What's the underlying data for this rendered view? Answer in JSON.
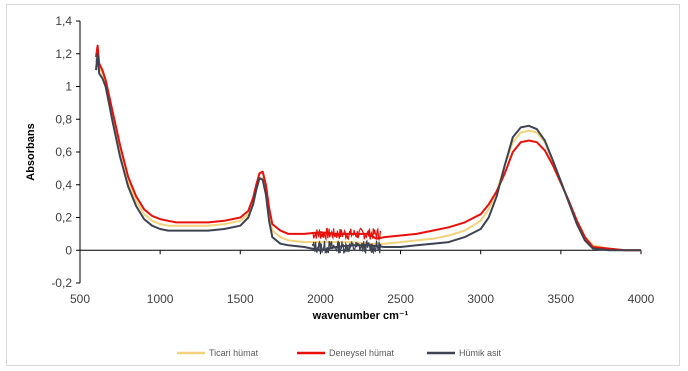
{
  "chart_data": {
    "type": "line",
    "title": "",
    "xlabel": "wavenumber cm⁻¹",
    "ylabel": "Absorbans",
    "xlim": [
      500,
      4000
    ],
    "ylim": [
      -0.2,
      1.4
    ],
    "xticks": [
      500,
      1000,
      1500,
      2000,
      2500,
      3000,
      3500,
      4000
    ],
    "yticks": [
      "-0,2",
      "0",
      "0,2",
      "0,4",
      "0,6",
      "0,8",
      "1",
      "1,2",
      "1,4"
    ],
    "yticks_values": [
      -0.2,
      0,
      0.2,
      0.4,
      0.6,
      0.8,
      1.0,
      1.2,
      1.4
    ],
    "grid": false,
    "legend_position": "bottom",
    "series": [
      {
        "name": "Ticari hümat",
        "color": "#f2d27a",
        "x": [
          600,
          610,
          620,
          640,
          660,
          680,
          700,
          750,
          800,
          850,
          900,
          950,
          1000,
          1050,
          1100,
          1200,
          1300,
          1400,
          1500,
          1550,
          1580,
          1600,
          1620,
          1640,
          1660,
          1680,
          1700,
          1750,
          1800,
          1900,
          2000,
          2100,
          2200,
          2300,
          2400,
          2500,
          2600,
          2700,
          2800,
          2900,
          3000,
          3050,
          3100,
          3150,
          3200,
          3250,
          3300,
          3350,
          3400,
          3450,
          3500,
          3550,
          3600,
          3650,
          3700,
          3800,
          3900,
          4000
        ],
        "y": [
          1.15,
          1.22,
          1.12,
          1.08,
          1.02,
          0.93,
          0.83,
          0.6,
          0.42,
          0.3,
          0.22,
          0.18,
          0.16,
          0.15,
          0.15,
          0.15,
          0.15,
          0.16,
          0.18,
          0.22,
          0.3,
          0.38,
          0.44,
          0.44,
          0.36,
          0.22,
          0.12,
          0.08,
          0.06,
          0.05,
          0.05,
          0.05,
          0.05,
          0.04,
          0.04,
          0.05,
          0.06,
          0.07,
          0.09,
          0.12,
          0.18,
          0.25,
          0.36,
          0.52,
          0.66,
          0.72,
          0.73,
          0.72,
          0.66,
          0.54,
          0.42,
          0.3,
          0.18,
          0.08,
          0.03,
          0.01,
          0.0,
          0.0
        ]
      },
      {
        "name": "Deneysel hümat",
        "color": "#e8100a",
        "x": [
          600,
          610,
          620,
          640,
          660,
          680,
          700,
          750,
          800,
          850,
          900,
          950,
          1000,
          1050,
          1100,
          1200,
          1300,
          1400,
          1500,
          1550,
          1580,
          1600,
          1620,
          1640,
          1660,
          1680,
          1700,
          1750,
          1800,
          1900,
          2000,
          2100,
          2200,
          2300,
          2350,
          2400,
          2500,
          2600,
          2700,
          2800,
          2900,
          3000,
          3050,
          3100,
          3150,
          3200,
          3250,
          3300,
          3350,
          3400,
          3450,
          3500,
          3550,
          3600,
          3650,
          3700,
          3800,
          3900,
          4000
        ],
        "y": [
          1.18,
          1.25,
          1.14,
          1.1,
          1.04,
          0.95,
          0.86,
          0.64,
          0.45,
          0.33,
          0.25,
          0.21,
          0.19,
          0.18,
          0.17,
          0.17,
          0.17,
          0.18,
          0.2,
          0.24,
          0.32,
          0.4,
          0.47,
          0.48,
          0.4,
          0.26,
          0.16,
          0.12,
          0.1,
          0.1,
          0.11,
          0.1,
          0.1,
          0.1,
          0.07,
          0.08,
          0.09,
          0.1,
          0.12,
          0.14,
          0.17,
          0.22,
          0.28,
          0.36,
          0.47,
          0.6,
          0.66,
          0.67,
          0.66,
          0.61,
          0.52,
          0.41,
          0.3,
          0.18,
          0.08,
          0.02,
          0.01,
          0.0,
          0.0
        ]
      },
      {
        "name": "Hümik asit",
        "color": "#3d4352",
        "x": [
          600,
          610,
          620,
          640,
          660,
          680,
          700,
          750,
          800,
          850,
          900,
          950,
          1000,
          1050,
          1100,
          1200,
          1300,
          1400,
          1500,
          1550,
          1580,
          1600,
          1620,
          1640,
          1660,
          1680,
          1700,
          1750,
          1800,
          1900,
          2000,
          2100,
          2200,
          2300,
          2400,
          2500,
          2600,
          2700,
          2800,
          2900,
          3000,
          3050,
          3100,
          3150,
          3200,
          3250,
          3300,
          3350,
          3400,
          3450,
          3500,
          3550,
          3600,
          3650,
          3700,
          3800,
          3900,
          4000
        ],
        "y": [
          1.1,
          1.2,
          1.08,
          1.05,
          1.0,
          0.9,
          0.8,
          0.57,
          0.39,
          0.27,
          0.19,
          0.15,
          0.13,
          0.12,
          0.12,
          0.12,
          0.12,
          0.13,
          0.15,
          0.2,
          0.28,
          0.37,
          0.44,
          0.43,
          0.34,
          0.18,
          0.08,
          0.04,
          0.03,
          0.02,
          0.0,
          0.02,
          0.03,
          0.03,
          0.02,
          0.02,
          0.03,
          0.04,
          0.05,
          0.08,
          0.13,
          0.2,
          0.33,
          0.52,
          0.69,
          0.75,
          0.76,
          0.74,
          0.67,
          0.55,
          0.42,
          0.29,
          0.16,
          0.06,
          0.01,
          0.0,
          0.0,
          0.0
        ]
      }
    ]
  }
}
